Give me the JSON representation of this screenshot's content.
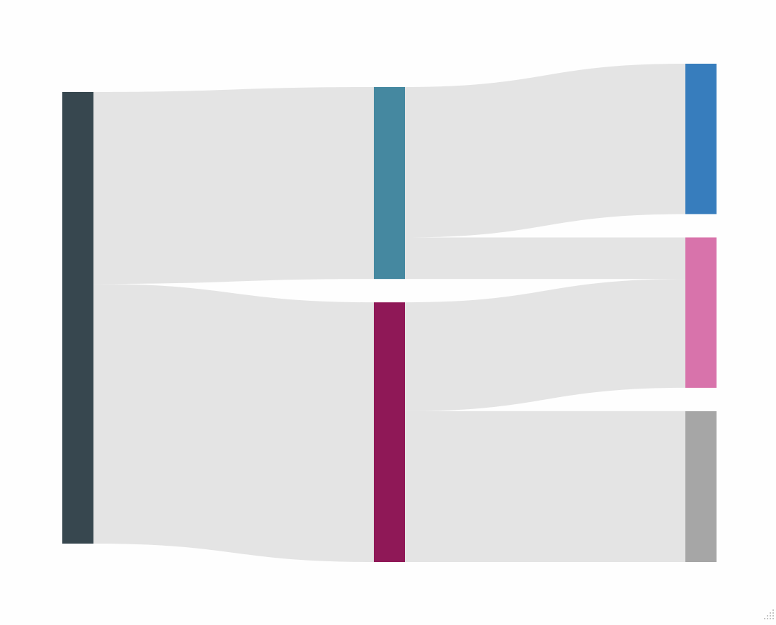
{
  "chart_data": {
    "type": "sankey",
    "title": "",
    "nodes": [
      {
        "id": "n0",
        "label": "",
        "column": 0,
        "color": "#37474f",
        "value": 100
      },
      {
        "id": "n1",
        "label": "",
        "column": 1,
        "color": "#4588a0",
        "value": 42.5
      },
      {
        "id": "n2",
        "label": "",
        "column": 1,
        "color": "#8f1857",
        "value": 57.5
      },
      {
        "id": "n3",
        "label": "",
        "column": 2,
        "color": "#377dbd",
        "value": 33.3
      },
      {
        "id": "n4",
        "label": "",
        "column": 2,
        "color": "#d873ab",
        "value": 33.3
      },
      {
        "id": "n5",
        "label": "",
        "column": 2,
        "color": "#a6a6a6",
        "value": 33.4
      }
    ],
    "links": [
      {
        "source": "n0",
        "target": "n1",
        "value": 42.5
      },
      {
        "source": "n0",
        "target": "n2",
        "value": 57.5
      },
      {
        "source": "n1",
        "target": "n3",
        "value": 33.3
      },
      {
        "source": "n1",
        "target": "n4",
        "value": 9.2
      },
      {
        "source": "n2",
        "target": "n4",
        "value": 24.1
      },
      {
        "source": "n2",
        "target": "n5",
        "value": 33.4
      }
    ],
    "link_color": "#e4e4e4",
    "legend": "none",
    "grid": false
  }
}
